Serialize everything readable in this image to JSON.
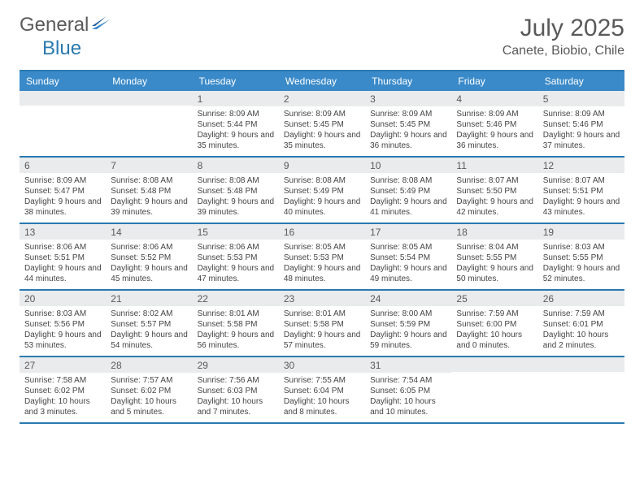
{
  "brand": {
    "part1": "General",
    "part2": "Blue"
  },
  "title": "July 2025",
  "location": "Canete, Biobio, Chile",
  "colors": {
    "header_bar": "#3a8ac9",
    "accent_border": "#2a7ab0",
    "daynum_bg": "#e9ebec",
    "text": "#595959"
  },
  "dow": [
    "Sunday",
    "Monday",
    "Tuesday",
    "Wednesday",
    "Thursday",
    "Friday",
    "Saturday"
  ],
  "weeks": [
    [
      {
        "n": "",
        "sunrise": "",
        "sunset": "",
        "daylight": ""
      },
      {
        "n": "",
        "sunrise": "",
        "sunset": "",
        "daylight": ""
      },
      {
        "n": "1",
        "sunrise": "8:09 AM",
        "sunset": "5:44 PM",
        "daylight": "9 hours and 35 minutes."
      },
      {
        "n": "2",
        "sunrise": "8:09 AM",
        "sunset": "5:45 PM",
        "daylight": "9 hours and 35 minutes."
      },
      {
        "n": "3",
        "sunrise": "8:09 AM",
        "sunset": "5:45 PM",
        "daylight": "9 hours and 36 minutes."
      },
      {
        "n": "4",
        "sunrise": "8:09 AM",
        "sunset": "5:46 PM",
        "daylight": "9 hours and 36 minutes."
      },
      {
        "n": "5",
        "sunrise": "8:09 AM",
        "sunset": "5:46 PM",
        "daylight": "9 hours and 37 minutes."
      }
    ],
    [
      {
        "n": "6",
        "sunrise": "8:09 AM",
        "sunset": "5:47 PM",
        "daylight": "9 hours and 38 minutes."
      },
      {
        "n": "7",
        "sunrise": "8:08 AM",
        "sunset": "5:48 PM",
        "daylight": "9 hours and 39 minutes."
      },
      {
        "n": "8",
        "sunrise": "8:08 AM",
        "sunset": "5:48 PM",
        "daylight": "9 hours and 39 minutes."
      },
      {
        "n": "9",
        "sunrise": "8:08 AM",
        "sunset": "5:49 PM",
        "daylight": "9 hours and 40 minutes."
      },
      {
        "n": "10",
        "sunrise": "8:08 AM",
        "sunset": "5:49 PM",
        "daylight": "9 hours and 41 minutes."
      },
      {
        "n": "11",
        "sunrise": "8:07 AM",
        "sunset": "5:50 PM",
        "daylight": "9 hours and 42 minutes."
      },
      {
        "n": "12",
        "sunrise": "8:07 AM",
        "sunset": "5:51 PM",
        "daylight": "9 hours and 43 minutes."
      }
    ],
    [
      {
        "n": "13",
        "sunrise": "8:06 AM",
        "sunset": "5:51 PM",
        "daylight": "9 hours and 44 minutes."
      },
      {
        "n": "14",
        "sunrise": "8:06 AM",
        "sunset": "5:52 PM",
        "daylight": "9 hours and 45 minutes."
      },
      {
        "n": "15",
        "sunrise": "8:06 AM",
        "sunset": "5:53 PM",
        "daylight": "9 hours and 47 minutes."
      },
      {
        "n": "16",
        "sunrise": "8:05 AM",
        "sunset": "5:53 PM",
        "daylight": "9 hours and 48 minutes."
      },
      {
        "n": "17",
        "sunrise": "8:05 AM",
        "sunset": "5:54 PM",
        "daylight": "9 hours and 49 minutes."
      },
      {
        "n": "18",
        "sunrise": "8:04 AM",
        "sunset": "5:55 PM",
        "daylight": "9 hours and 50 minutes."
      },
      {
        "n": "19",
        "sunrise": "8:03 AM",
        "sunset": "5:55 PM",
        "daylight": "9 hours and 52 minutes."
      }
    ],
    [
      {
        "n": "20",
        "sunrise": "8:03 AM",
        "sunset": "5:56 PM",
        "daylight": "9 hours and 53 minutes."
      },
      {
        "n": "21",
        "sunrise": "8:02 AM",
        "sunset": "5:57 PM",
        "daylight": "9 hours and 54 minutes."
      },
      {
        "n": "22",
        "sunrise": "8:01 AM",
        "sunset": "5:58 PM",
        "daylight": "9 hours and 56 minutes."
      },
      {
        "n": "23",
        "sunrise": "8:01 AM",
        "sunset": "5:58 PM",
        "daylight": "9 hours and 57 minutes."
      },
      {
        "n": "24",
        "sunrise": "8:00 AM",
        "sunset": "5:59 PM",
        "daylight": "9 hours and 59 minutes."
      },
      {
        "n": "25",
        "sunrise": "7:59 AM",
        "sunset": "6:00 PM",
        "daylight": "10 hours and 0 minutes."
      },
      {
        "n": "26",
        "sunrise": "7:59 AM",
        "sunset": "6:01 PM",
        "daylight": "10 hours and 2 minutes."
      }
    ],
    [
      {
        "n": "27",
        "sunrise": "7:58 AM",
        "sunset": "6:02 PM",
        "daylight": "10 hours and 3 minutes."
      },
      {
        "n": "28",
        "sunrise": "7:57 AM",
        "sunset": "6:02 PM",
        "daylight": "10 hours and 5 minutes."
      },
      {
        "n": "29",
        "sunrise": "7:56 AM",
        "sunset": "6:03 PM",
        "daylight": "10 hours and 7 minutes."
      },
      {
        "n": "30",
        "sunrise": "7:55 AM",
        "sunset": "6:04 PM",
        "daylight": "10 hours and 8 minutes."
      },
      {
        "n": "31",
        "sunrise": "7:54 AM",
        "sunset": "6:05 PM",
        "daylight": "10 hours and 10 minutes."
      },
      {
        "n": "",
        "sunrise": "",
        "sunset": "",
        "daylight": ""
      },
      {
        "n": "",
        "sunrise": "",
        "sunset": "",
        "daylight": ""
      }
    ]
  ],
  "labels": {
    "sunrise": "Sunrise: ",
    "sunset": "Sunset: ",
    "daylight": "Daylight: "
  }
}
